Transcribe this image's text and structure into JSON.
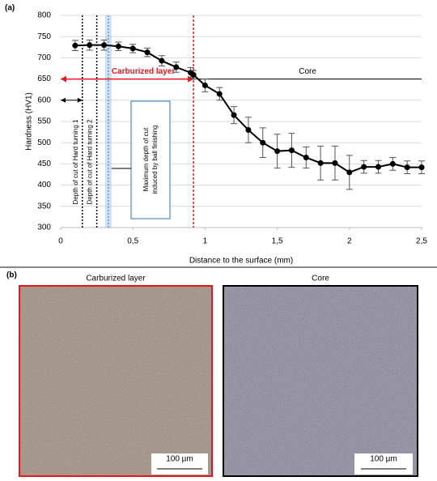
{
  "chart_data": {
    "type": "line",
    "panel_label": "(a)",
    "x_label": "Distance to the surface (mm)",
    "y_label": "Hardness (HV1)",
    "x": [
      0.1,
      0.2,
      0.3,
      0.4,
      0.5,
      0.6,
      0.7,
      0.8,
      0.9,
      0.92,
      1.0,
      1.1,
      1.2,
      1.3,
      1.4,
      1.5,
      1.6,
      1.7,
      1.8,
      1.9,
      2.0,
      2.1,
      2.2,
      2.3,
      2.4,
      2.5
    ],
    "series": [
      {
        "color": "#000000",
        "values": [
          729,
          730,
          730,
          727,
          722,
          713,
          693,
          678,
          665,
          660,
          635,
          615,
          565,
          530,
          500,
          480,
          482,
          465,
          452,
          452,
          430,
          443,
          443,
          450,
          442,
          442
        ],
        "errors": [
          12,
          12,
          12,
          10,
          10,
          10,
          12,
          12,
          12,
          10,
          15,
          15,
          20,
          30,
          35,
          40,
          40,
          25,
          40,
          40,
          40,
          15,
          15,
          15,
          15,
          15
        ]
      }
    ],
    "xlim": [
      0,
      2.5
    ],
    "xticks": [
      0,
      {
        "value": 0.5,
        "label": "0,5"
      },
      1,
      {
        "value": 1.5,
        "label": "1,5"
      },
      2,
      {
        "value": 2.5,
        "label": "2,5"
      }
    ],
    "ylim": [
      300,
      800
    ],
    "yticks": [
      300,
      350,
      400,
      450,
      500,
      550,
      600,
      650,
      700,
      750,
      800
    ],
    "grid": true,
    "annotations": {
      "hard_turning_1": {
        "text": "Depth of cut of Hard turning 1",
        "x": 0.15
      },
      "hard_turning_2": {
        "text": "Depth of cut of Hard turning 2",
        "x": 0.25
      },
      "ball_finishing": {
        "text": "Maximum depth of cut induced by ball finishing",
        "x": 0.33
      },
      "carburized_layer": {
        "text": "Carburized layer",
        "x": 0.92,
        "y": 650,
        "color": "#e8141b"
      },
      "core": {
        "text": "Core"
      }
    }
  },
  "micrographs": {
    "panel_label": "(b)",
    "images": [
      {
        "title": "Carburized layer",
        "scale_bar": "100 µm"
      },
      {
        "title": "Core",
        "scale_bar": "100 µm"
      }
    ]
  }
}
